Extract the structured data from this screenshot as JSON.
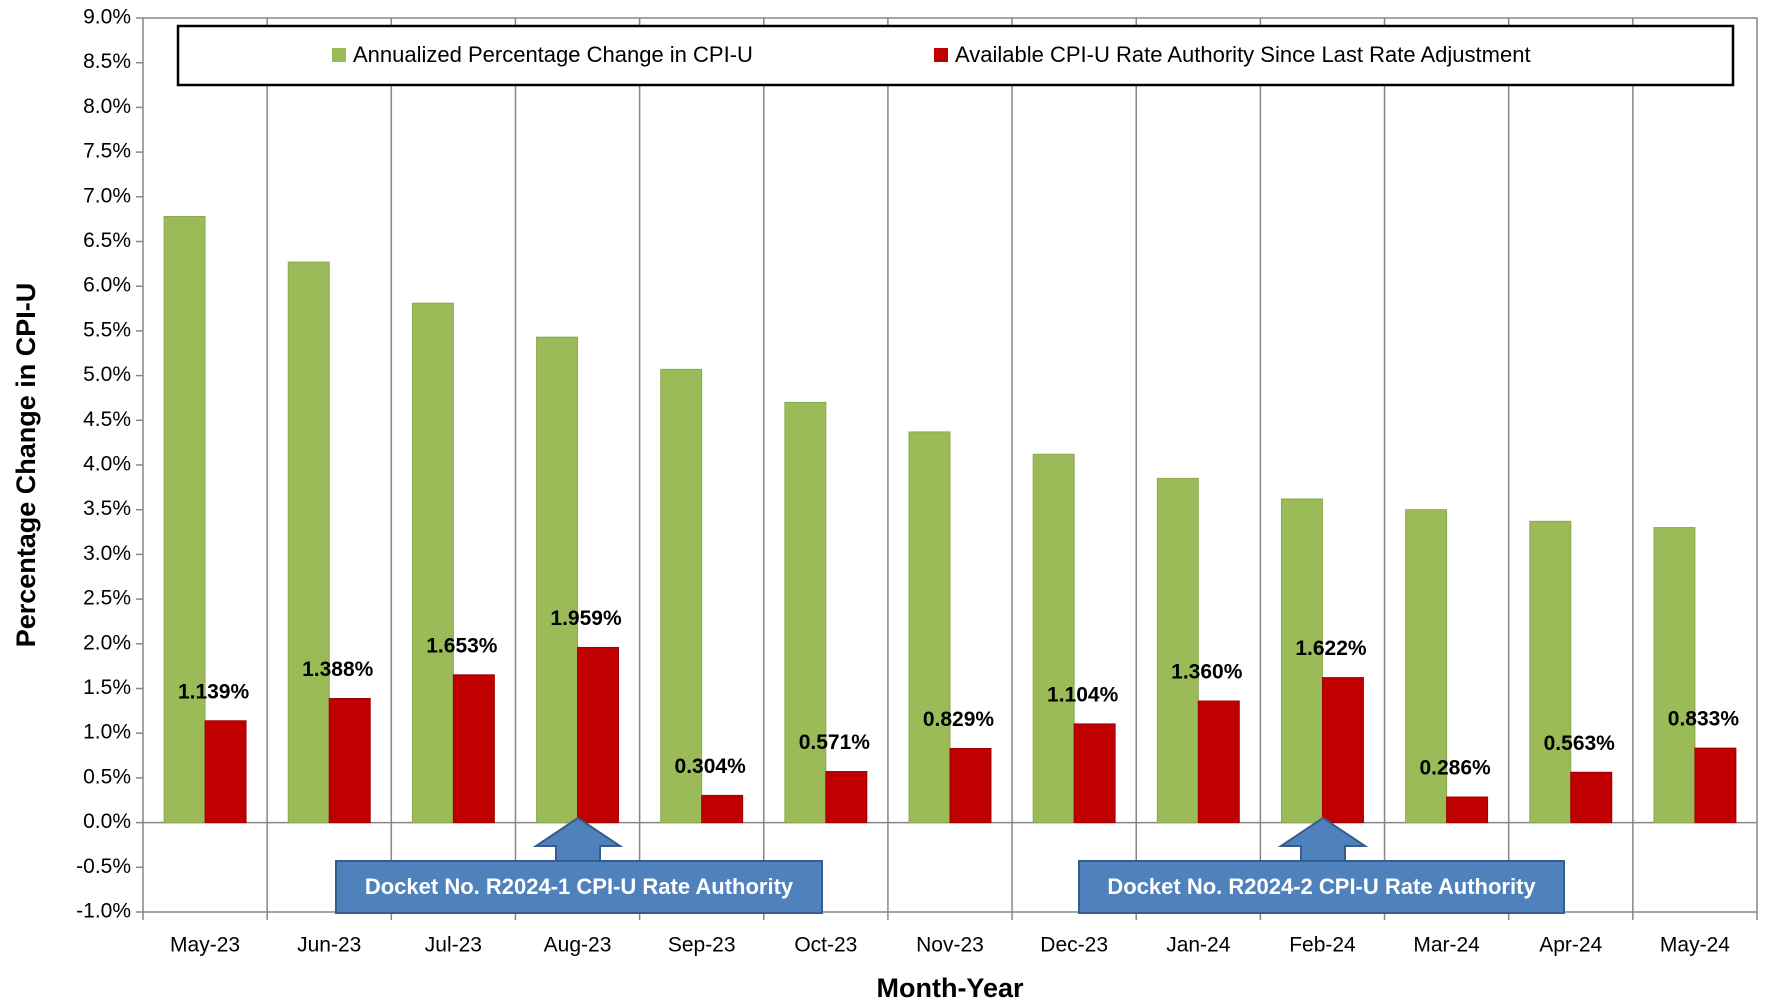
{
  "chart_data": {
    "type": "bar",
    "x_label": "Month-Year",
    "y_label": "Percentage Change in CPI-U",
    "categories": [
      "May-23",
      "Jun-23",
      "Jul-23",
      "Aug-23",
      "Sep-23",
      "Oct-23",
      "Nov-23",
      "Dec-23",
      "Jan-24",
      "Feb-24",
      "Mar-24",
      "Apr-24",
      "May-24"
    ],
    "series": [
      {
        "name": "Annualized Percentage Change in CPI-U",
        "color": "#9bbb59",
        "values": [
          6.78,
          6.27,
          5.81,
          5.43,
          5.07,
          4.7,
          4.37,
          4.12,
          3.85,
          3.62,
          3.5,
          3.37,
          3.3
        ]
      },
      {
        "name": "Available CPI-U Rate Authority Since Last Rate Adjustment",
        "color": "#c00000",
        "values": [
          1.139,
          1.388,
          1.653,
          1.959,
          0.304,
          0.571,
          0.829,
          1.104,
          1.36,
          1.622,
          0.286,
          0.563,
          0.833
        ],
        "value_labels": [
          "1.139%",
          "1.388%",
          "1.653%",
          "1.959%",
          "0.304%",
          "0.571%",
          "0.829%",
          "1.104%",
          "1.360%",
          "1.622%",
          "0.286%",
          "0.563%",
          "0.833%"
        ]
      }
    ],
    "ylim": [
      -1.0,
      9.0
    ],
    "yticks": [
      {
        "value": -1.0,
        "label": "-1.0%"
      },
      {
        "value": -0.5,
        "label": "-0.5%"
      },
      {
        "value": 0,
        "label": "0.0%"
      },
      {
        "value": 0.5,
        "label": "0.5%"
      },
      {
        "value": 1.0,
        "label": "1.0%"
      },
      {
        "value": 1.5,
        "label": "1.5%"
      },
      {
        "value": 2.0,
        "label": "2.0%"
      },
      {
        "value": 2.5,
        "label": "2.5%"
      },
      {
        "value": 3.0,
        "label": "3.0%"
      },
      {
        "value": 3.5,
        "label": "3.5%"
      },
      {
        "value": 4.0,
        "label": "4.0%"
      },
      {
        "value": 4.5,
        "label": "4.5%"
      },
      {
        "value": 5.0,
        "label": "5.0%"
      },
      {
        "value": 5.5,
        "label": "5.5%"
      },
      {
        "value": 6.0,
        "label": "6.0%"
      },
      {
        "value": 6.5,
        "label": "6.5%"
      },
      {
        "value": 7.0,
        "label": "7.0%"
      },
      {
        "value": 7.5,
        "label": "7.5%"
      },
      {
        "value": 8.0,
        "label": "8.0%"
      },
      {
        "value": 8.5,
        "label": "8.5%"
      },
      {
        "value": 9.0,
        "label": "9.0%"
      }
    ],
    "grid": "vertical",
    "legend": "top",
    "annotations": [
      "Docket No. R2024-1 CPI-U Rate Authority",
      "Docket No. R2024-2 CPI-U Rate Authority"
    ]
  }
}
